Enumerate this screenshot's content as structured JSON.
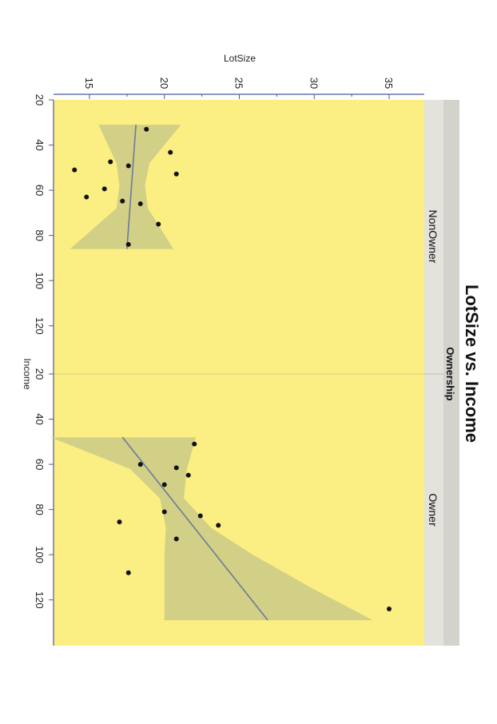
{
  "chart_data": {
    "type": "scatter",
    "title": "LotSize vs. Income",
    "facet_label": "Ownership",
    "xlabel": "Income",
    "ylabel": "LotSize",
    "xlim": [
      20,
      137
    ],
    "ylim": [
      12,
      37
    ],
    "x_ticks": [
      20,
      40,
      60,
      80,
      100,
      120
    ],
    "y_ticks": [
      15,
      20,
      25,
      30,
      35
    ],
    "orientation": "rotated-90-clockwise",
    "panel_background": "#fbee82",
    "band_color": "#d2cf86",
    "fit_line_color": "#6b7a99",
    "point_color": "#111111",
    "axis_color": "#4a5aa0",
    "strip_color": "#e3e2dc",
    "panels": [
      {
        "name": "NonOwner",
        "points": [
          {
            "x": 33.0,
            "y": 18.8
          },
          {
            "x": 43.2,
            "y": 20.4
          },
          {
            "x": 47.4,
            "y": 16.4
          },
          {
            "x": 49.2,
            "y": 17.6
          },
          {
            "x": 51.0,
            "y": 14.0
          },
          {
            "x": 52.8,
            "y": 20.8
          },
          {
            "x": 59.4,
            "y": 16.0
          },
          {
            "x": 63.0,
            "y": 14.8
          },
          {
            "x": 64.8,
            "y": 17.2
          },
          {
            "x": 66.0,
            "y": 18.4
          },
          {
            "x": 75.0,
            "y": 19.6
          },
          {
            "x": 84.0,
            "y": 17.6
          }
        ],
        "fit": [
          {
            "x": 31,
            "y": 18.1
          },
          {
            "x": 86,
            "y": 17.5
          }
        ],
        "band": [
          {
            "x": 31,
            "lo": 15.6,
            "hi": 21.1
          },
          {
            "x": 48,
            "lo": 16.8,
            "hi": 19.0
          },
          {
            "x": 58,
            "lo": 17.0,
            "hi": 18.7
          },
          {
            "x": 68,
            "lo": 16.8,
            "hi": 18.9
          },
          {
            "x": 86,
            "lo": 13.7,
            "hi": 20.6
          }
        ]
      },
      {
        "name": "Owner",
        "points": [
          {
            "x": 51.0,
            "y": 22.0
          },
          {
            "x": 60.0,
            "y": 18.4
          },
          {
            "x": 61.5,
            "y": 20.8
          },
          {
            "x": 64.8,
            "y": 21.6
          },
          {
            "x": 69.0,
            "y": 20.0
          },
          {
            "x": 81.0,
            "y": 20.0
          },
          {
            "x": 82.8,
            "y": 22.4
          },
          {
            "x": 85.5,
            "y": 17.0
          },
          {
            "x": 87.0,
            "y": 23.6
          },
          {
            "x": 93.0,
            "y": 20.8
          },
          {
            "x": 108.0,
            "y": 17.6
          },
          {
            "x": 124.0,
            "y": 35.0
          }
        ],
        "fit": [
          {
            "x": 48,
            "y": 17.2
          },
          {
            "x": 129,
            "y": 26.9
          }
        ],
        "band": [
          {
            "x": 48,
            "lo": 12.4,
            "hi": 22.1
          },
          {
            "x": 62,
            "lo": 17.7,
            "hi": 21.5
          },
          {
            "x": 75,
            "lo": 19.7,
            "hi": 21.3
          },
          {
            "x": 88,
            "lo": 20.1,
            "hi": 23.1
          },
          {
            "x": 100,
            "lo": 20.0,
            "hi": 25.9
          },
          {
            "x": 115,
            "lo": 20.0,
            "hi": 29.9
          },
          {
            "x": 129,
            "lo": 20.0,
            "hi": 33.9
          }
        ]
      }
    ]
  }
}
